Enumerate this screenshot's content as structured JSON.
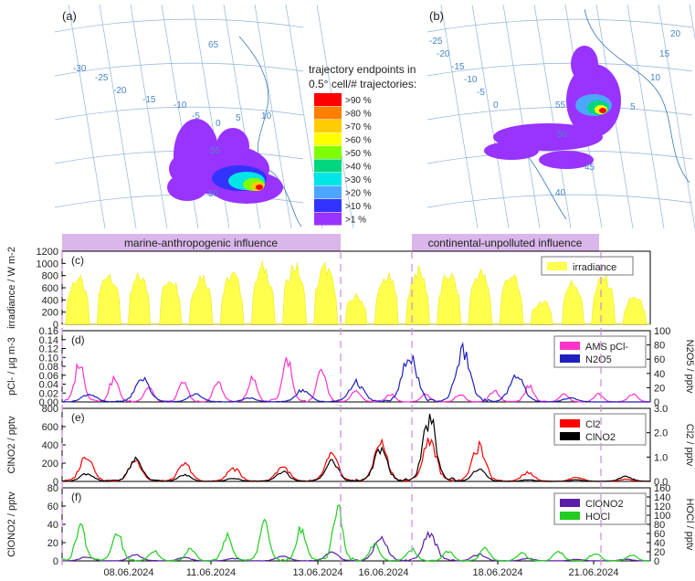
{
  "maps": [
    {
      "label": "(a)",
      "grid_labels": [
        "65",
        "-30",
        "-25",
        "-20",
        "-15",
        "-10",
        "-5",
        "0",
        "5",
        "10",
        "55",
        "50"
      ],
      "legend_title": [
        "trajectory endpoints in",
        "0.5° cell/# trajectories:"
      ],
      "legend_items": [
        ">90 %",
        ">80 %",
        ">70 %",
        ">60 %",
        ">50 %",
        ">40 %",
        ">30 %",
        ">20 %",
        ">10 %",
        ">1 %"
      ],
      "legend_colors": [
        "#ff0000",
        "#ff7f00",
        "#ffcc00",
        "#ffff00",
        "#7fff00",
        "#00d67f",
        "#00e6e6",
        "#4da6ff",
        "#3333ff",
        "#9933ff"
      ]
    },
    {
      "label": "(b)",
      "grid_labels": [
        "-25",
        "-20",
        "-15",
        "-10",
        "-5",
        "0",
        "5",
        "10",
        "15",
        "20",
        "55",
        "50",
        "45",
        "40"
      ]
    }
  ],
  "bands": [
    {
      "label": "marine-anthropogenic influence"
    },
    {
      "label": "continental-unpolluted influence"
    }
  ],
  "x_ticks": [
    "08.06.2024",
    "11.06.2024",
    "13.06.2024",
    "16.06.2024",
    "18.06.2024",
    "21.06.2024"
  ],
  "chart_data": [
    {
      "type": "area",
      "panel": "(c)",
      "ylabel": "irradiance / W m-2",
      "ylim": [
        0,
        1200
      ],
      "y_ticks": [
        "0",
        "200",
        "400",
        "600",
        "800",
        "1000",
        "1200"
      ],
      "legend": [
        "irradiance"
      ],
      "series": [
        {
          "name": "irradiance",
          "color": "#ffff4d",
          "peaks": [
            850,
            950,
            880,
            860,
            900,
            920,
            1050,
            1080,
            1050,
            520,
            880,
            980,
            920,
            960,
            920,
            420,
            770,
            870,
            500
          ]
        }
      ]
    },
    {
      "type": "line",
      "panel": "(d)",
      "ylabel": "pCl- / µg m-3",
      "y2label": "N2O5 / pptv",
      "ylim": [
        0,
        0.16
      ],
      "y2lim": [
        0,
        100
      ],
      "y_ticks": [
        "0.00",
        "0.02",
        "0.04",
        "0.06",
        "0.08",
        "0.10",
        "0.12",
        "0.14",
        "0.16"
      ],
      "y2_ticks": [
        "0",
        "20",
        "40",
        "60",
        "80",
        "100"
      ],
      "legend": [
        "AMS pCl-",
        "N2O5"
      ],
      "series": [
        {
          "name": "AMS pCl-",
          "color": "#ff33cc",
          "peaks": [
            0.1,
            0.06,
            0.04,
            0.05,
            0.05,
            0.06,
            0.11,
            0.08,
            0.03,
            0.02,
            0.02,
            0.02,
            0.03,
            0.04,
            0.02,
            0.02,
            0.02
          ]
        },
        {
          "name": "N2O5",
          "color": "#1f1fbf",
          "peaks": [
            0.02,
            0.06,
            0.02,
            0.01,
            0.03,
            0.05,
            0.12,
            0.13,
            0.07,
            0.01,
            0.0
          ]
        }
      ]
    },
    {
      "type": "line",
      "panel": "(e)",
      "ylabel": "ClNO2 / pptv",
      "y2label": "Cl2 / pptv",
      "ylim": [
        0,
        800
      ],
      "y2lim": [
        0,
        3.0
      ],
      "y_ticks": [
        "0",
        "200",
        "400",
        "600",
        "800"
      ],
      "y2_ticks": [
        "0.0",
        "1.0",
        "2.0",
        "3.0"
      ],
      "legend": [
        "Cl2",
        "ClNO2"
      ],
      "series": [
        {
          "name": "Cl2",
          "color": "#ff0000",
          "peaks": [
            1.2,
            1.0,
            0.8,
            0.6,
            0.7,
            1.2,
            1.8,
            2.0,
            1.6,
            0.4,
            0.2,
            0.1
          ]
        },
        {
          "name": "ClNO2",
          "color": "#000000",
          "peaks": [
            100,
            280,
            80,
            40,
            120,
            250,
            400,
            780,
            150,
            20,
            20,
            60
          ]
        }
      ]
    },
    {
      "type": "line",
      "panel": "(f)",
      "ylabel": "ClONO2 / pptv",
      "y2label": "HOCl / pptv",
      "ylim": [
        0,
        80
      ],
      "y2lim": [
        0,
        160
      ],
      "y_ticks": [
        "0",
        "20",
        "40",
        "60",
        "80"
      ],
      "y2_ticks": [
        "0",
        "20",
        "40",
        "60",
        "80",
        "100",
        "120",
        "140",
        "160"
      ],
      "legend": [
        "ClONO2",
        "HOCl"
      ],
      "series": [
        {
          "name": "ClONO2",
          "color": "#5a1fa8",
          "peaks": [
            5,
            8,
            4,
            3,
            6,
            10,
            28,
            35,
            8,
            3,
            2,
            2
          ]
        },
        {
          "name": "HOCl",
          "color": "#22cc22",
          "peaks": [
            90,
            70,
            25,
            30,
            60,
            90,
            80,
            130,
            40,
            30,
            25,
            30,
            20,
            25,
            20,
            15
          ]
        }
      ]
    }
  ]
}
